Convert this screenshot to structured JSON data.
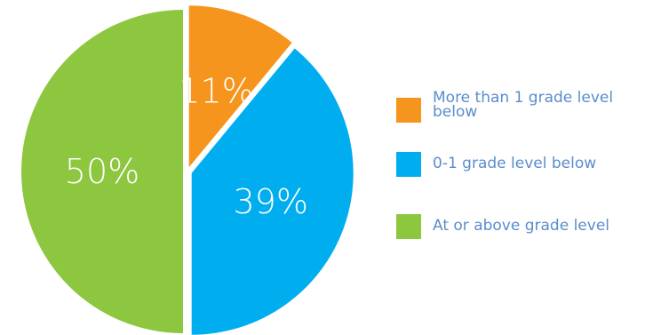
{
  "chart_data": {
    "type": "pie",
    "slices": [
      {
        "label": "More than 1 grade level below",
        "value": 11,
        "display": "11%",
        "color": "#f6951e"
      },
      {
        "label": "0-1 grade level below",
        "value": 39,
        "display": "39%",
        "color": "#00aeef"
      },
      {
        "label": "At or above grade level",
        "value": 50,
        "display": "50%",
        "color": "#8dc63f"
      }
    ],
    "legend_position": "right"
  }
}
